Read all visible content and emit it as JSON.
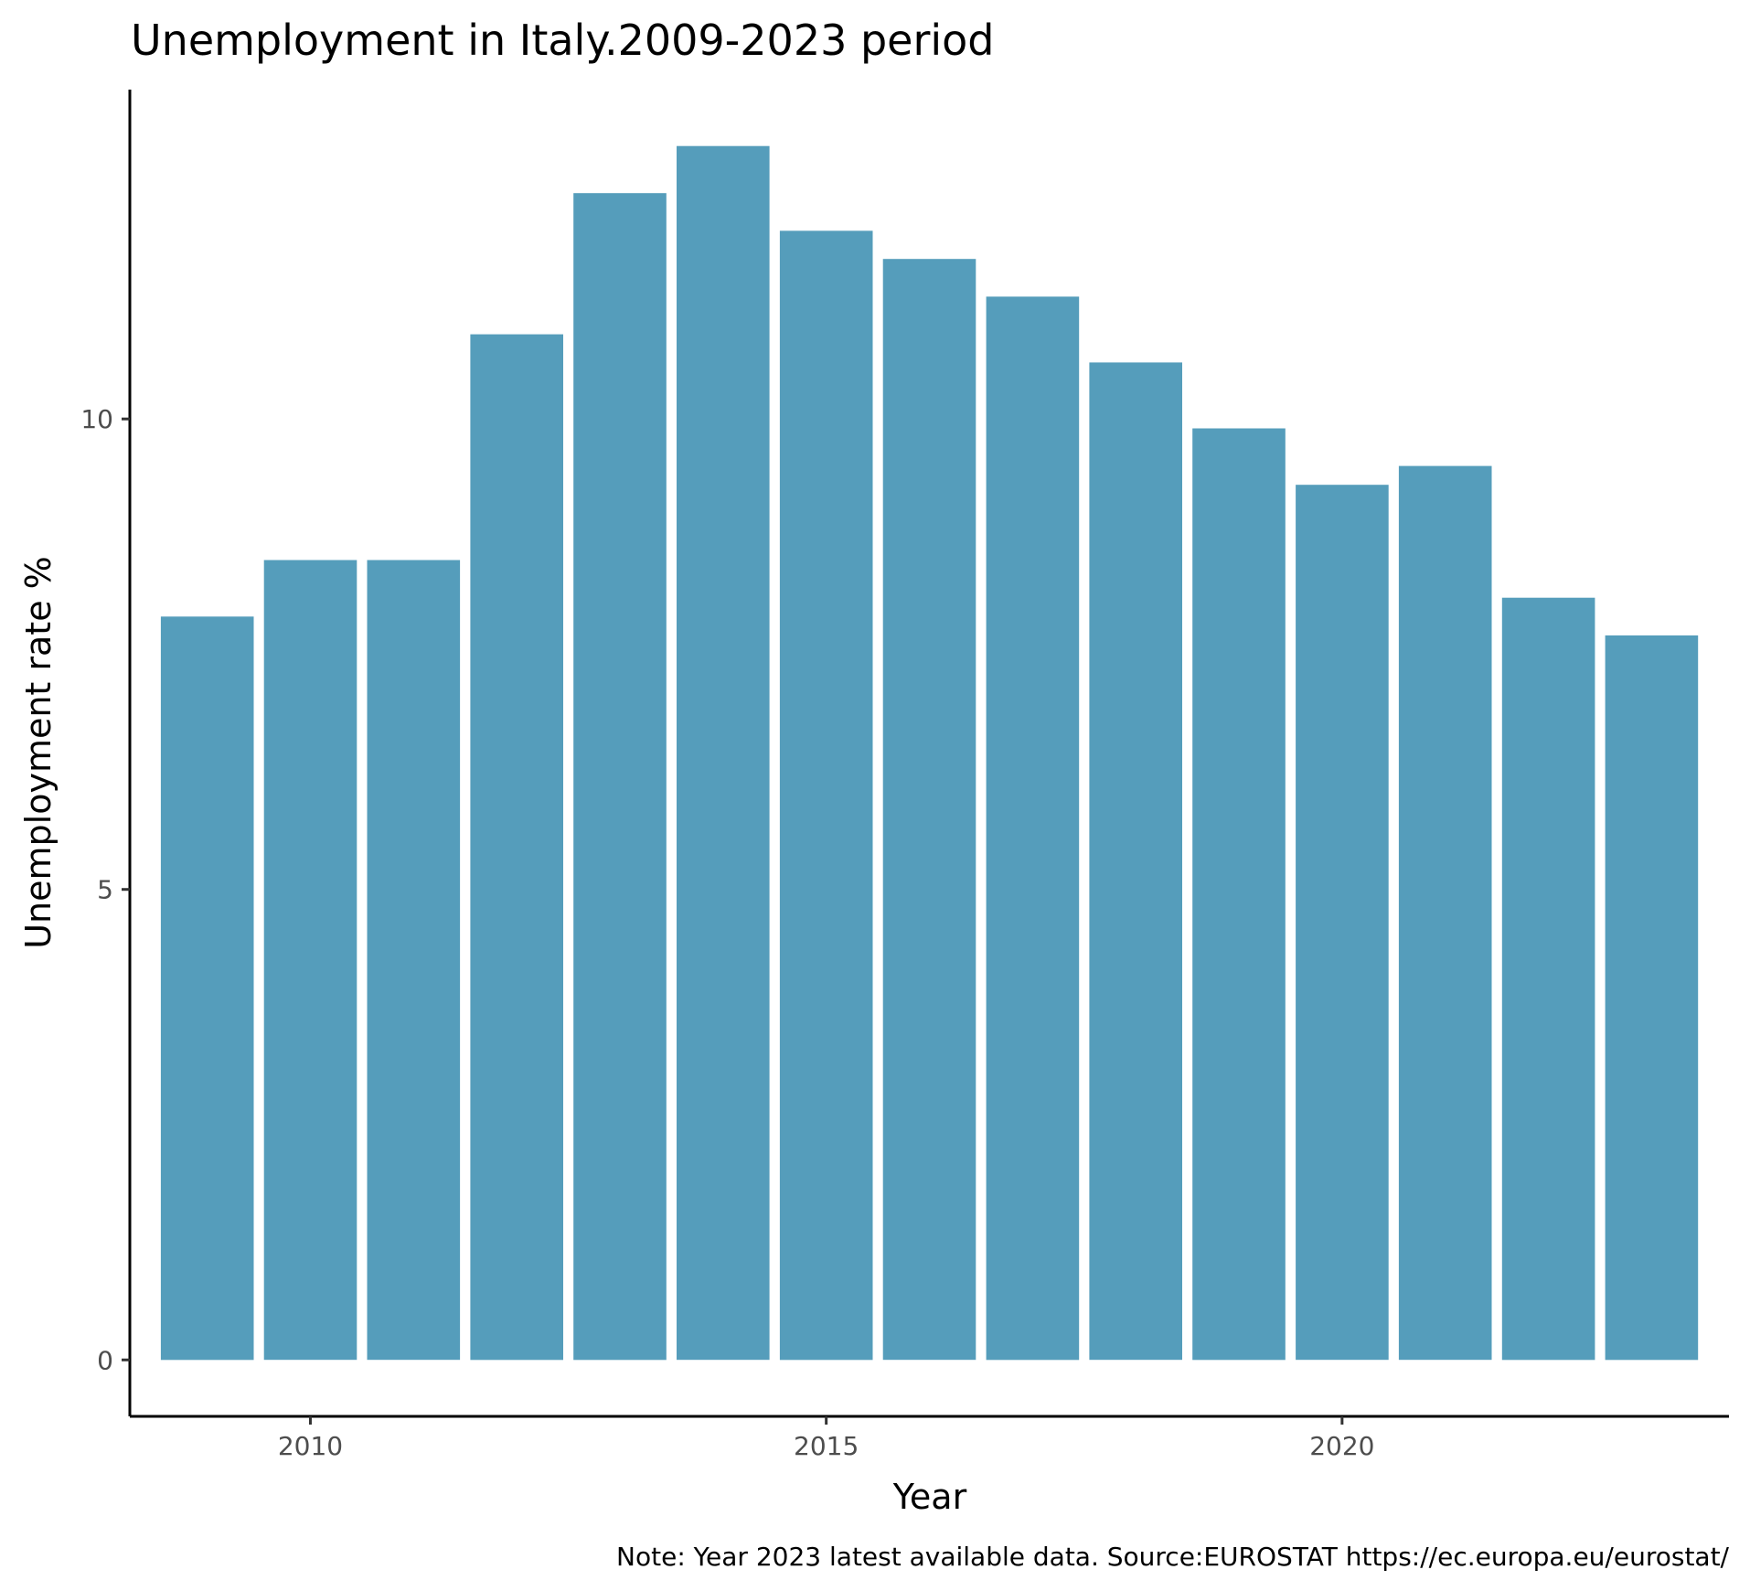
{
  "chart_data": {
    "type": "bar",
    "title": "Unemployment in Italy.2009-2023 period",
    "xlabel": "Year",
    "ylabel": "Unemployment rate %",
    "caption": "Note: Year 2023  latest available data. Source:EUROSTAT https://ec.europa.eu/eurostat/",
    "x": [
      2009,
      2010,
      2011,
      2012,
      2013,
      2014,
      2015,
      2016,
      2017,
      2018,
      2019,
      2020,
      2021,
      2022,
      2023
    ],
    "values": [
      7.9,
      8.5,
      8.5,
      10.9,
      12.4,
      12.9,
      12.0,
      11.7,
      11.3,
      10.6,
      9.9,
      9.3,
      9.5,
      8.1,
      7.7
    ],
    "xlim": [
      2008.25,
      2023.75
    ],
    "ylim": [
      -0.6,
      13.5
    ],
    "x_ticks": [
      2010,
      2015,
      2020
    ],
    "x_tick_labels": [
      "2010",
      "2015",
      "2020"
    ],
    "y_ticks": [
      0,
      5,
      10
    ],
    "y_tick_labels": [
      "0",
      "5",
      "10"
    ],
    "bar_color": "#559dbb",
    "grid": false,
    "legend": "none"
  }
}
